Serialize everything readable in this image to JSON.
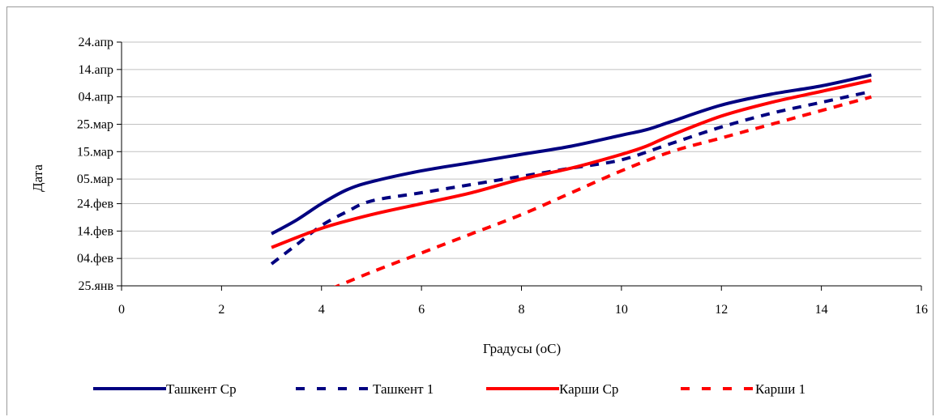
{
  "chart_data": {
    "type": "line",
    "title": "",
    "xlabel": "Градусы (оС)",
    "ylabel": "Дата",
    "xlim": [
      0,
      16
    ],
    "x_ticks": [
      0,
      2,
      4,
      6,
      8,
      10,
      12,
      14,
      16
    ],
    "ylim": [
      "2010-01-25",
      "2010-04-24"
    ],
    "y_ticks": [
      "25.янв",
      "04.фев",
      "14.фев",
      "24.фев",
      "05.мар",
      "15.мар",
      "25.мар",
      "04.апр",
      "14.апр",
      "24.апр"
    ],
    "y_tick_values": [
      "2010-01-25",
      "2010-02-04",
      "2010-02-14",
      "2010-02-24",
      "2010-03-05",
      "2010-03-15",
      "2010-03-25",
      "2010-04-04",
      "2010-04-14",
      "2010-04-24"
    ],
    "grid": true,
    "legend_position": "bottom",
    "series": [
      {
        "name": "Ташкент Ср",
        "color": "#000080",
        "style": "solid",
        "points": [
          [
            3.0,
            "2010-02-13"
          ],
          [
            3.5,
            "2010-02-18"
          ],
          [
            4.0,
            "2010-02-24"
          ],
          [
            4.5,
            "2010-03-01"
          ],
          [
            5.0,
            "2010-03-04"
          ],
          [
            6.0,
            "2010-03-08"
          ],
          [
            7.0,
            "2010-03-11"
          ],
          [
            8.0,
            "2010-03-14"
          ],
          [
            9.0,
            "2010-03-17"
          ],
          [
            10.0,
            "2010-03-21"
          ],
          [
            10.5,
            "2010-03-23"
          ],
          [
            11.0,
            "2010-03-26"
          ],
          [
            12.0,
            "2010-04-01"
          ],
          [
            13.0,
            "2010-04-05"
          ],
          [
            14.0,
            "2010-04-08"
          ],
          [
            15.0,
            "2010-04-12"
          ]
        ]
      },
      {
        "name": "Ташкент 1",
        "color": "#000080",
        "style": "dashed",
        "points": [
          [
            3.0,
            "2010-02-02"
          ],
          [
            3.5,
            "2010-02-09"
          ],
          [
            4.0,
            "2010-02-16"
          ],
          [
            4.5,
            "2010-02-21"
          ],
          [
            5.0,
            "2010-02-25"
          ],
          [
            6.0,
            "2010-02-28"
          ],
          [
            7.0,
            "2010-03-03"
          ],
          [
            8.0,
            "2010-03-06"
          ],
          [
            9.0,
            "2010-03-09"
          ],
          [
            10.0,
            "2010-03-12"
          ],
          [
            11.0,
            "2010-03-18"
          ],
          [
            12.0,
            "2010-03-24"
          ],
          [
            13.0,
            "2010-03-29"
          ],
          [
            14.0,
            "2010-04-02"
          ],
          [
            15.0,
            "2010-04-06"
          ]
        ]
      },
      {
        "name": "Карши Ср",
        "color": "#ff0000",
        "style": "solid",
        "points": [
          [
            3.0,
            "2010-02-08"
          ],
          [
            4.0,
            "2010-02-15"
          ],
          [
            5.0,
            "2010-02-20"
          ],
          [
            6.0,
            "2010-02-24"
          ],
          [
            7.0,
            "2010-02-28"
          ],
          [
            8.0,
            "2010-03-05"
          ],
          [
            9.0,
            "2010-03-09"
          ],
          [
            10.0,
            "2010-03-14"
          ],
          [
            10.5,
            "2010-03-17"
          ],
          [
            11.0,
            "2010-03-21"
          ],
          [
            12.0,
            "2010-03-28"
          ],
          [
            13.0,
            "2010-04-02"
          ],
          [
            14.0,
            "2010-04-06"
          ],
          [
            15.0,
            "2010-04-10"
          ]
        ]
      },
      {
        "name": "Карши 1",
        "color": "#ff0000",
        "style": "dashed",
        "points": [
          [
            4.2,
            "2010-01-24"
          ],
          [
            5.0,
            "2010-01-30"
          ],
          [
            6.0,
            "2010-02-06"
          ],
          [
            7.0,
            "2010-02-13"
          ],
          [
            8.0,
            "2010-02-20"
          ],
          [
            9.0,
            "2010-02-28"
          ],
          [
            10.0,
            "2010-03-08"
          ],
          [
            11.0,
            "2010-03-15"
          ],
          [
            12.0,
            "2010-03-20"
          ],
          [
            13.0,
            "2010-03-25"
          ],
          [
            14.0,
            "2010-03-30"
          ],
          [
            15.0,
            "2010-04-04"
          ]
        ]
      }
    ]
  }
}
